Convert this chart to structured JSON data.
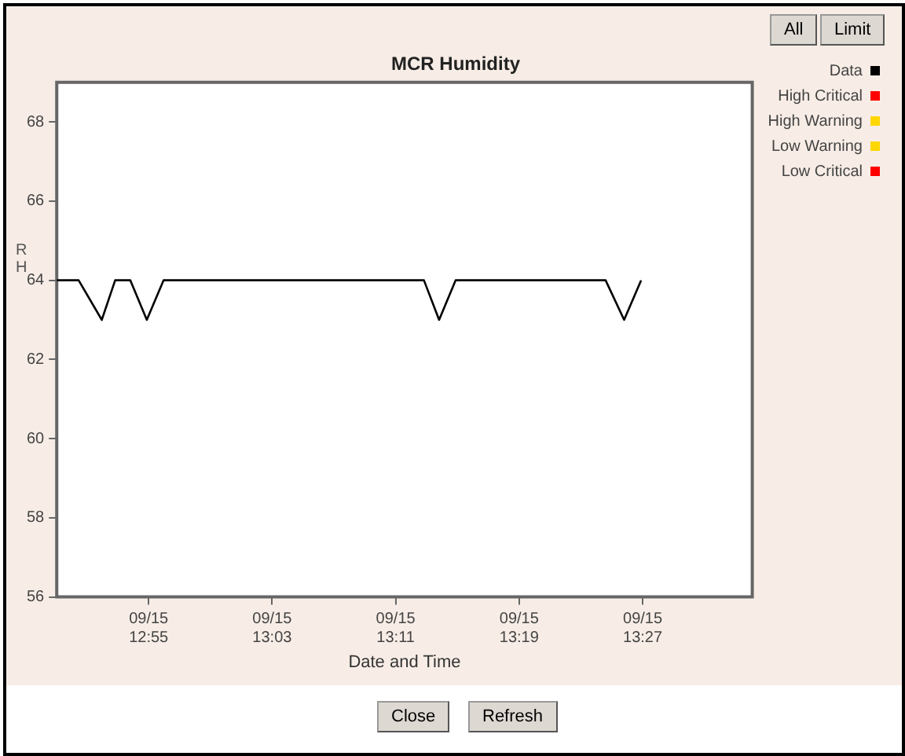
{
  "chart_data": {
    "type": "line",
    "title": "MCR Humidity",
    "xlabel": "Date and Time",
    "ylabel": "RH",
    "xlim": [
      "--09-15T12:49:03",
      "--09-15T13:34:06"
    ],
    "xticks": [
      {
        "value": "--09-15T12:55",
        "label": "09/15 12:55"
      },
      {
        "value": "--09-15T13:03",
        "label": "09/15 13:03"
      },
      {
        "value": "--09-15T13:11",
        "label": "09/15 13:11"
      },
      {
        "value": "--09-15T13:19",
        "label": "09/15 13:19"
      },
      {
        "value": "--09-15T13:27",
        "label": "09/15 13:27"
      }
    ],
    "ylim": [
      56,
      69
    ],
    "yticks": [
      56,
      58,
      60,
      62,
      64,
      66,
      68
    ],
    "series": [
      {
        "name": "Data",
        "color": "#000000",
        "x": [
          "--09-15T12:49:03",
          "--09-15T12:50:28",
          "--09-15T12:51:58",
          "--09-15T12:52:50",
          "--09-15T12:53:49",
          "--09-15T12:54:53",
          "--09-15T12:55:58",
          "--09-15T13:12:50",
          "--09-15T13:13:49",
          "--09-15T13:14:53",
          "--09-15T13:24:36",
          "--09-15T13:25:48",
          "--09-15T13:26:54"
        ],
        "values": [
          64,
          64,
          63,
          64,
          64,
          63,
          64,
          64,
          63,
          64,
          64,
          63,
          64
        ]
      },
      {
        "name": "High Critical",
        "color": "#ff0000"
      },
      {
        "name": "High Warning",
        "color": "#ffd700"
      },
      {
        "name": "Low Warning",
        "color": "#ffd700"
      },
      {
        "name": "Low Critical",
        "color": "#ff0000"
      }
    ],
    "legend": "top right",
    "grid": false,
    "marker": "none",
    "line_style": "solid",
    "annotations": [
      "All",
      "Limit",
      "Close",
      "Refresh"
    ]
  }
}
